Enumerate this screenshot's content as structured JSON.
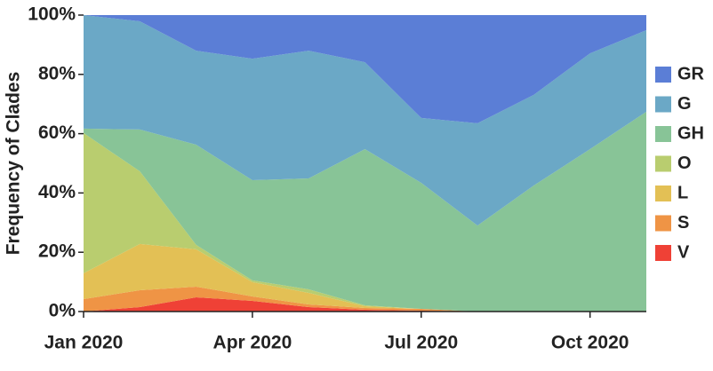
{
  "chart_data": {
    "type": "stacked_area",
    "y_label": "Frequency of Clades",
    "x": [
      "2020-01",
      "2020-02",
      "2020-03",
      "2020-04",
      "2020-05",
      "2020-06",
      "2020-07",
      "2020-08",
      "2020-09",
      "2020-10",
      "2020-11"
    ],
    "xlim": [
      "2020-01",
      "2020-11"
    ],
    "xticks": [
      {
        "value": "2020-01",
        "label": "Jan 2020"
      },
      {
        "value": "2020-04",
        "label": "Apr 2020"
      },
      {
        "value": "2020-07",
        "label": "Jul 2020"
      },
      {
        "value": "2020-10",
        "label": "Oct 2020"
      }
    ],
    "ylim": [
      0,
      100
    ],
    "yticks": [
      {
        "value": 0,
        "label": "0%"
      },
      {
        "value": 20,
        "label": "20%"
      },
      {
        "value": 40,
        "label": "40%"
      },
      {
        "value": 60,
        "label": "60%"
      },
      {
        "value": 80,
        "label": "80%"
      },
      {
        "value": 100,
        "label": "100%"
      }
    ],
    "legend": "right",
    "series": [
      {
        "name": "V",
        "color": "#ef4136",
        "values": [
          0,
          1.5,
          4.8,
          3.6,
          1.5,
          0.6,
          0.3,
          0,
          0,
          0,
          0
        ]
      },
      {
        "name": "S",
        "color": "#ef9445",
        "values": [
          4.2,
          5.7,
          3.6,
          1.5,
          0.9,
          0.6,
          0.6,
          0,
          0,
          0,
          0
        ]
      },
      {
        "name": "L",
        "color": "#e3c055",
        "values": [
          8.7,
          15.6,
          12.6,
          4.8,
          3.9,
          0.6,
          0,
          0,
          0,
          0,
          0
        ]
      },
      {
        "name": "O",
        "color": "#b9cd6f",
        "values": [
          47.3,
          24.5,
          1.5,
          0.6,
          1.2,
          0.3,
          0,
          0,
          0,
          0,
          0
        ]
      },
      {
        "name": "GH",
        "color": "#88c497",
        "values": [
          1.5,
          14.1,
          33.8,
          33.8,
          37.4,
          52.7,
          42.5,
          29.0,
          42.5,
          54.8,
          67.4
        ]
      },
      {
        "name": "G",
        "color": "#6ba8c6",
        "values": [
          38.3,
          36.5,
          31.7,
          41.0,
          43.1,
          29.3,
          21.9,
          34.5,
          30.6,
          32.3,
          27.5
        ]
      },
      {
        "name": "GR",
        "color": "#5b7ed6",
        "values": [
          0,
          2.1,
          12.0,
          14.7,
          12.0,
          15.9,
          34.7,
          36.5,
          26.9,
          12.9,
          5.1
        ]
      }
    ]
  }
}
